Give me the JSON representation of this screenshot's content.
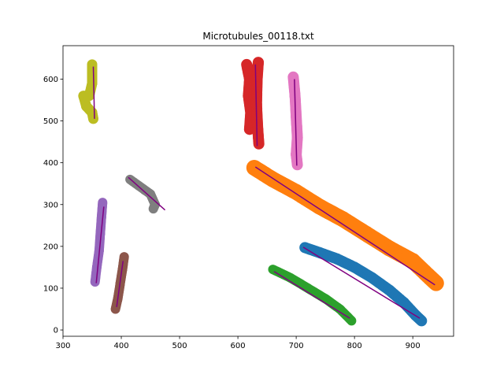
{
  "chart_data": {
    "type": "scatter",
    "title": "Microtubules_00118.txt",
    "xlabel": "",
    "ylabel": "",
    "xlim": [
      300,
      970
    ],
    "ylim": [
      -15,
      680
    ],
    "xticks": [
      300,
      400,
      500,
      600,
      700,
      800,
      900
    ],
    "yticks": [
      0,
      100,
      200,
      300,
      400,
      500,
      600
    ],
    "grid": false,
    "fit_line_color": "#800080",
    "series": [
      {
        "color": "#1f77b4",
        "points": [
          [
            715,
            197
          ],
          [
            740,
            185
          ],
          [
            770,
            170
          ],
          [
            800,
            150
          ],
          [
            830,
            125
          ],
          [
            860,
            95
          ],
          [
            885,
            65
          ],
          [
            905,
            35
          ],
          [
            915,
            22
          ]
        ],
        "fit": [
          [
            712,
            198
          ],
          [
            912,
            28
          ]
        ],
        "thickness": 14
      },
      {
        "color": "#ff7f0e",
        "points": [
          [
            628,
            388
          ],
          [
            660,
            360
          ],
          [
            700,
            330
          ],
          [
            740,
            295
          ],
          [
            780,
            265
          ],
          [
            820,
            230
          ],
          [
            860,
            195
          ],
          [
            900,
            165
          ],
          [
            930,
            125
          ],
          [
            940,
            112
          ]
        ],
        "fit": [
          [
            630,
            390
          ],
          [
            938,
            108
          ]
        ],
        "thickness": 20
      },
      {
        "color": "#2ca02c",
        "points": [
          [
            660,
            145
          ],
          [
            690,
            125
          ],
          [
            720,
            100
          ],
          [
            750,
            75
          ],
          [
            775,
            50
          ],
          [
            795,
            22
          ]
        ],
        "fit": [
          [
            662,
            140
          ],
          [
            792,
            28
          ]
        ],
        "thickness": 12
      },
      {
        "color": "#d62728",
        "points": [
          [
            615,
            635
          ],
          [
            620,
            600
          ],
          [
            618,
            560
          ],
          [
            622,
            520
          ],
          [
            620,
            480
          ],
          [
            635,
            640
          ],
          [
            633,
            600
          ],
          [
            632,
            540
          ],
          [
            634,
            480
          ],
          [
            636,
            445
          ]
        ],
        "fit": [
          [
            630,
            635
          ],
          [
            633,
            440
          ]
        ],
        "thickness": 14
      },
      {
        "color": "#9467bd",
        "points": [
          [
            368,
            305
          ],
          [
            366,
            270
          ],
          [
            364,
            230
          ],
          [
            362,
            190
          ],
          [
            358,
            150
          ],
          [
            355,
            115
          ]
        ],
        "fit": [
          [
            370,
            295
          ],
          [
            357,
            112
          ]
        ],
        "thickness": 12
      },
      {
        "color": "#8c564b",
        "points": [
          [
            405,
            175
          ],
          [
            402,
            145
          ],
          [
            398,
            110
          ],
          [
            394,
            75
          ],
          [
            390,
            50
          ]
        ],
        "fit": [
          [
            403,
            165
          ],
          [
            392,
            55
          ]
        ],
        "thickness": 12
      },
      {
        "color": "#e377c2",
        "points": [
          [
            695,
            605
          ],
          [
            698,
            560
          ],
          [
            700,
            510
          ],
          [
            702,
            460
          ],
          [
            700,
            420
          ],
          [
            702,
            395
          ]
        ],
        "fit": [
          [
            697,
            600
          ],
          [
            701,
            393
          ]
        ],
        "thickness": 14
      },
      {
        "color": "#7f7f7f",
        "points": [
          [
            415,
            360
          ],
          [
            430,
            345
          ],
          [
            440,
            335
          ],
          [
            450,
            325
          ],
          [
            458,
            300
          ],
          [
            455,
            290
          ]
        ],
        "fit": [
          [
            412,
            365
          ],
          [
            475,
            287
          ]
        ],
        "thickness": 12
      },
      {
        "color": "#bcbd22",
        "points": [
          [
            350,
            635
          ],
          [
            350,
            590
          ],
          [
            345,
            560
          ],
          [
            335,
            560
          ],
          [
            340,
            535
          ],
          [
            350,
            520
          ],
          [
            352,
            505
          ]
        ],
        "fit": [
          [
            352,
            630
          ],
          [
            354,
            505
          ]
        ],
        "thickness": 13
      }
    ]
  }
}
